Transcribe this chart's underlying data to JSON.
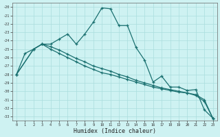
{
  "xlabel": "Humidex (Indice chaleur)",
  "xlim": [
    -0.5,
    23.5
  ],
  "ylim": [
    -33.5,
    -19.5
  ],
  "yticks": [
    -20,
    -21,
    -22,
    -23,
    -24,
    -25,
    -26,
    -27,
    -28,
    -29,
    -30,
    -31,
    -32,
    -33
  ],
  "xticks": [
    0,
    1,
    2,
    3,
    4,
    5,
    6,
    7,
    8,
    9,
    10,
    11,
    12,
    13,
    14,
    15,
    16,
    17,
    18,
    19,
    20,
    21,
    22,
    23
  ],
  "bg_color": "#cef2f2",
  "grid_color": "#aadddd",
  "line_color": "#1a7070",
  "line1_x": [
    0,
    1,
    2,
    3,
    4,
    5,
    6,
    7,
    8,
    9,
    10,
    11,
    12,
    13,
    14,
    15,
    16,
    17,
    18,
    19,
    20,
    21,
    22,
    23
  ],
  "line1_y": [
    -28.0,
    -25.5,
    -25.0,
    -24.4,
    -24.4,
    -23.8,
    -23.2,
    -24.4,
    -23.2,
    -21.8,
    -20.1,
    -20.2,
    -22.2,
    -22.2,
    -24.8,
    -26.3,
    -28.9,
    -28.2,
    -29.5,
    -29.5,
    -29.9,
    -29.8,
    -32.2,
    -33.2
  ],
  "line2_x": [
    0,
    2,
    3,
    4,
    5,
    6,
    7,
    8,
    9,
    10,
    11,
    12,
    13,
    14,
    15,
    16,
    17,
    18,
    19,
    20,
    21,
    22,
    23
  ],
  "line2_y": [
    -28.0,
    -25.0,
    -24.4,
    -25.0,
    -25.5,
    -26.0,
    -26.5,
    -27.0,
    -27.4,
    -27.8,
    -28.0,
    -28.3,
    -28.6,
    -28.9,
    -29.2,
    -29.5,
    -29.7,
    -29.9,
    -30.1,
    -30.2,
    -30.5,
    -31.2,
    -33.2
  ],
  "line3_x": [
    0,
    2,
    3,
    4,
    5,
    6,
    7,
    8,
    9,
    10,
    11,
    12,
    13,
    14,
    15,
    16,
    17,
    18,
    19,
    20,
    21,
    22,
    23
  ],
  "line3_y": [
    -28.0,
    -25.0,
    -24.4,
    -24.7,
    -25.1,
    -25.6,
    -26.1,
    -26.5,
    -27.0,
    -27.3,
    -27.6,
    -28.0,
    -28.3,
    -28.7,
    -29.0,
    -29.3,
    -29.6,
    -29.8,
    -30.0,
    -30.2,
    -30.4,
    -31.0,
    -33.2
  ]
}
